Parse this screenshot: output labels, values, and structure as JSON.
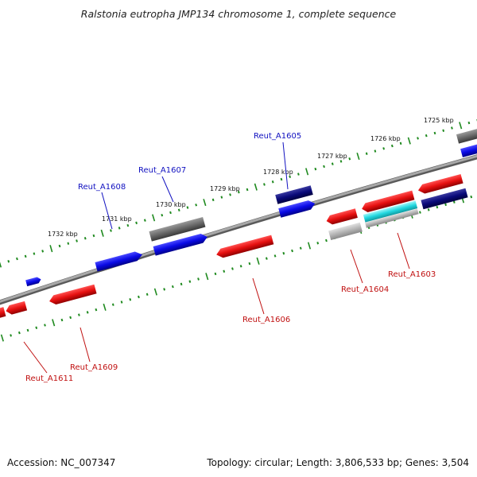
{
  "title": "Ralstonia eutropha JMP134 chromosome 1, complete sequence",
  "footer": {
    "accession": "Accession: NC_007347",
    "summary": "Topology: circular; Length: 3,806,533 bp; Genes: 3,504"
  },
  "colors": {
    "backbone": "#8a8a8a",
    "tick": "#1f8a1f",
    "forward_gene": "#0a0ae6",
    "forward_gene_dark": "#0a0a7a",
    "reverse_gene": "#e61010",
    "rna_gene": "#6a6a6a",
    "pseudo_gene": "#b5b5b5",
    "highlight_gene": "#22d8e0",
    "label_forward": "#1010c0",
    "label_reverse": "#c01010"
  },
  "scale_labels": [
    "1732 kbp",
    "1731 kbp",
    "1730 kbp",
    "1729 kbp",
    "1728 kbp",
    "1727 kbp",
    "1726 kbp",
    "1725 kbp"
  ],
  "gene_labels": {
    "forward": [
      "Reut_A1605",
      "Reut_A1607",
      "Reut_A1608"
    ],
    "reverse": [
      "Reut_A1603",
      "Reut_A1604",
      "Reut_A1606",
      "Reut_A1609",
      "Reut_A1611"
    ]
  }
}
